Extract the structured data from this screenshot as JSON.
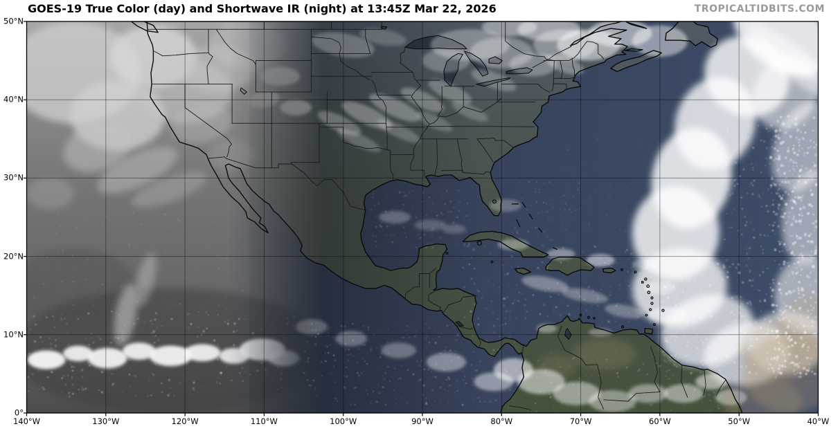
{
  "header": {
    "title": "GOES-19 True Color (day) and Shortwave IR (night) at 13:45Z Mar 22, 2026",
    "watermark": "TROPICALTIDBITS.COM"
  },
  "map": {
    "extent": {
      "lon_min": -140,
      "lon_max": -40,
      "lat_min": 0,
      "lat_max": 50
    },
    "lat_ticks": [
      {
        "value": 50,
        "label": "50°N"
      },
      {
        "value": 40,
        "label": "40°N"
      },
      {
        "value": 30,
        "label": "30°N"
      },
      {
        "value": 20,
        "label": "20°N"
      },
      {
        "value": 10,
        "label": "10°N"
      },
      {
        "value": 0,
        "label": "0°"
      }
    ],
    "lon_ticks": [
      {
        "value": -140,
        "label": "140°W"
      },
      {
        "value": -130,
        "label": "130°W"
      },
      {
        "value": -120,
        "label": "120°W"
      },
      {
        "value": -110,
        "label": "110°W"
      },
      {
        "value": -100,
        "label": "100°W"
      },
      {
        "value": -90,
        "label": "90°W"
      },
      {
        "value": -80,
        "label": "80°W"
      },
      {
        "value": -70,
        "label": "70°W"
      },
      {
        "value": -60,
        "label": "60°W"
      },
      {
        "value": -50,
        "label": "50°W"
      },
      {
        "value": -40,
        "label": "40°W"
      }
    ],
    "colors": {
      "title": "#000000",
      "watermark": "#9a9a9a",
      "frame": "#000000",
      "gridline": "rgba(0,0,0,0.40)",
      "coastline": "#0b0b0b",
      "state_border": "#1a1a1a",
      "ocean_west": "#2f3844",
      "ocean_mid": "#36425a",
      "ocean_east": "#3d4c68",
      "night_gray": "#6e6e6e",
      "cloud_white": "#f2f2f2",
      "land_north": "#505a66",
      "land_mid": "#49524a",
      "land_south": "#45523c",
      "lake": "#2c3542",
      "dust_tan": "#b49a74"
    }
  }
}
